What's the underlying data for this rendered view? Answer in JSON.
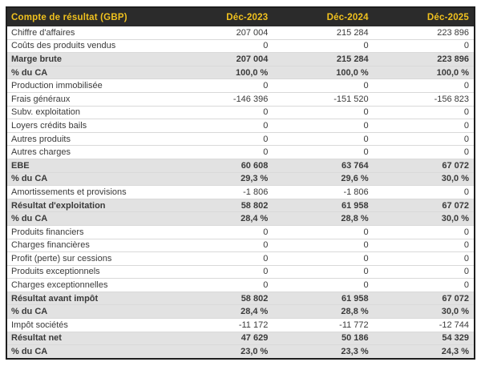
{
  "table": {
    "title": "Compte de résultat (GBP)",
    "columns": [
      "Déc-2023",
      "Déc-2024",
      "Déc-2025"
    ],
    "rows": [
      {
        "label": "Chiffre d'affaires",
        "values": [
          "207 004",
          "215 284",
          "223 896"
        ],
        "emphasis": false
      },
      {
        "label": "Coûts des produits vendus",
        "values": [
          "0",
          "0",
          "0"
        ],
        "emphasis": false
      },
      {
        "label": "Marge brute",
        "values": [
          "207 004",
          "215 284",
          "223 896"
        ],
        "emphasis": true
      },
      {
        "label": "% du CA",
        "values": [
          "100,0 %",
          "100,0 %",
          "100,0 %"
        ],
        "emphasis": true
      },
      {
        "label": "Production immobilisée",
        "values": [
          "0",
          "0",
          "0"
        ],
        "emphasis": false
      },
      {
        "label": "Frais généraux",
        "values": [
          "-146 396",
          "-151 520",
          "-156 823"
        ],
        "emphasis": false
      },
      {
        "label": "Subv. exploitation",
        "values": [
          "0",
          "0",
          "0"
        ],
        "emphasis": false
      },
      {
        "label": "Loyers crédits bails",
        "values": [
          "0",
          "0",
          "0"
        ],
        "emphasis": false
      },
      {
        "label": "Autres produits",
        "values": [
          "0",
          "0",
          "0"
        ],
        "emphasis": false
      },
      {
        "label": "Autres charges",
        "values": [
          "0",
          "0",
          "0"
        ],
        "emphasis": false
      },
      {
        "label": "EBE",
        "values": [
          "60 608",
          "63 764",
          "67 072"
        ],
        "emphasis": true
      },
      {
        "label": "% du CA",
        "values": [
          "29,3 %",
          "29,6 %",
          "30,0 %"
        ],
        "emphasis": true
      },
      {
        "label": "Amortissements et provisions",
        "values": [
          "-1 806",
          "-1 806",
          "0"
        ],
        "emphasis": false
      },
      {
        "label": "Résultat d'exploitation",
        "values": [
          "58 802",
          "61 958",
          "67 072"
        ],
        "emphasis": true
      },
      {
        "label": "% du CA",
        "values": [
          "28,4 %",
          "28,8 %",
          "30,0 %"
        ],
        "emphasis": true
      },
      {
        "label": "Produits financiers",
        "values": [
          "0",
          "0",
          "0"
        ],
        "emphasis": false
      },
      {
        "label": "Charges financières",
        "values": [
          "0",
          "0",
          "0"
        ],
        "emphasis": false
      },
      {
        "label": "Profit (perte) sur cessions",
        "values": [
          "0",
          "0",
          "0"
        ],
        "emphasis": false
      },
      {
        "label": "Produits exceptionnels",
        "values": [
          "0",
          "0",
          "0"
        ],
        "emphasis": false
      },
      {
        "label": "Charges exceptionnelles",
        "values": [
          "0",
          "0",
          "0"
        ],
        "emphasis": false
      },
      {
        "label": "Résultat avant impôt",
        "values": [
          "58 802",
          "61 958",
          "67 072"
        ],
        "emphasis": true
      },
      {
        "label": "% du CA",
        "values": [
          "28,4 %",
          "28,8 %",
          "30,0 %"
        ],
        "emphasis": true
      },
      {
        "label": "Impôt sociétés",
        "values": [
          "-11 172",
          "-11 772",
          "-12 744"
        ],
        "emphasis": false
      },
      {
        "label": "Résultat net",
        "values": [
          "47 629",
          "50 186",
          "54 329"
        ],
        "emphasis": true
      },
      {
        "label": "% du CA",
        "values": [
          "23,0 %",
          "23,3 %",
          "24,3 %"
        ],
        "emphasis": true
      }
    ]
  },
  "colors": {
    "header_bg": "#2b2b2b",
    "header_text": "#f0c11e",
    "band_bg": "#e2e2e2",
    "row_bg": "#ffffff",
    "divider": "#d9d9d9",
    "text": "#3a3a3a",
    "frame_border": "#1e1e1e"
  }
}
